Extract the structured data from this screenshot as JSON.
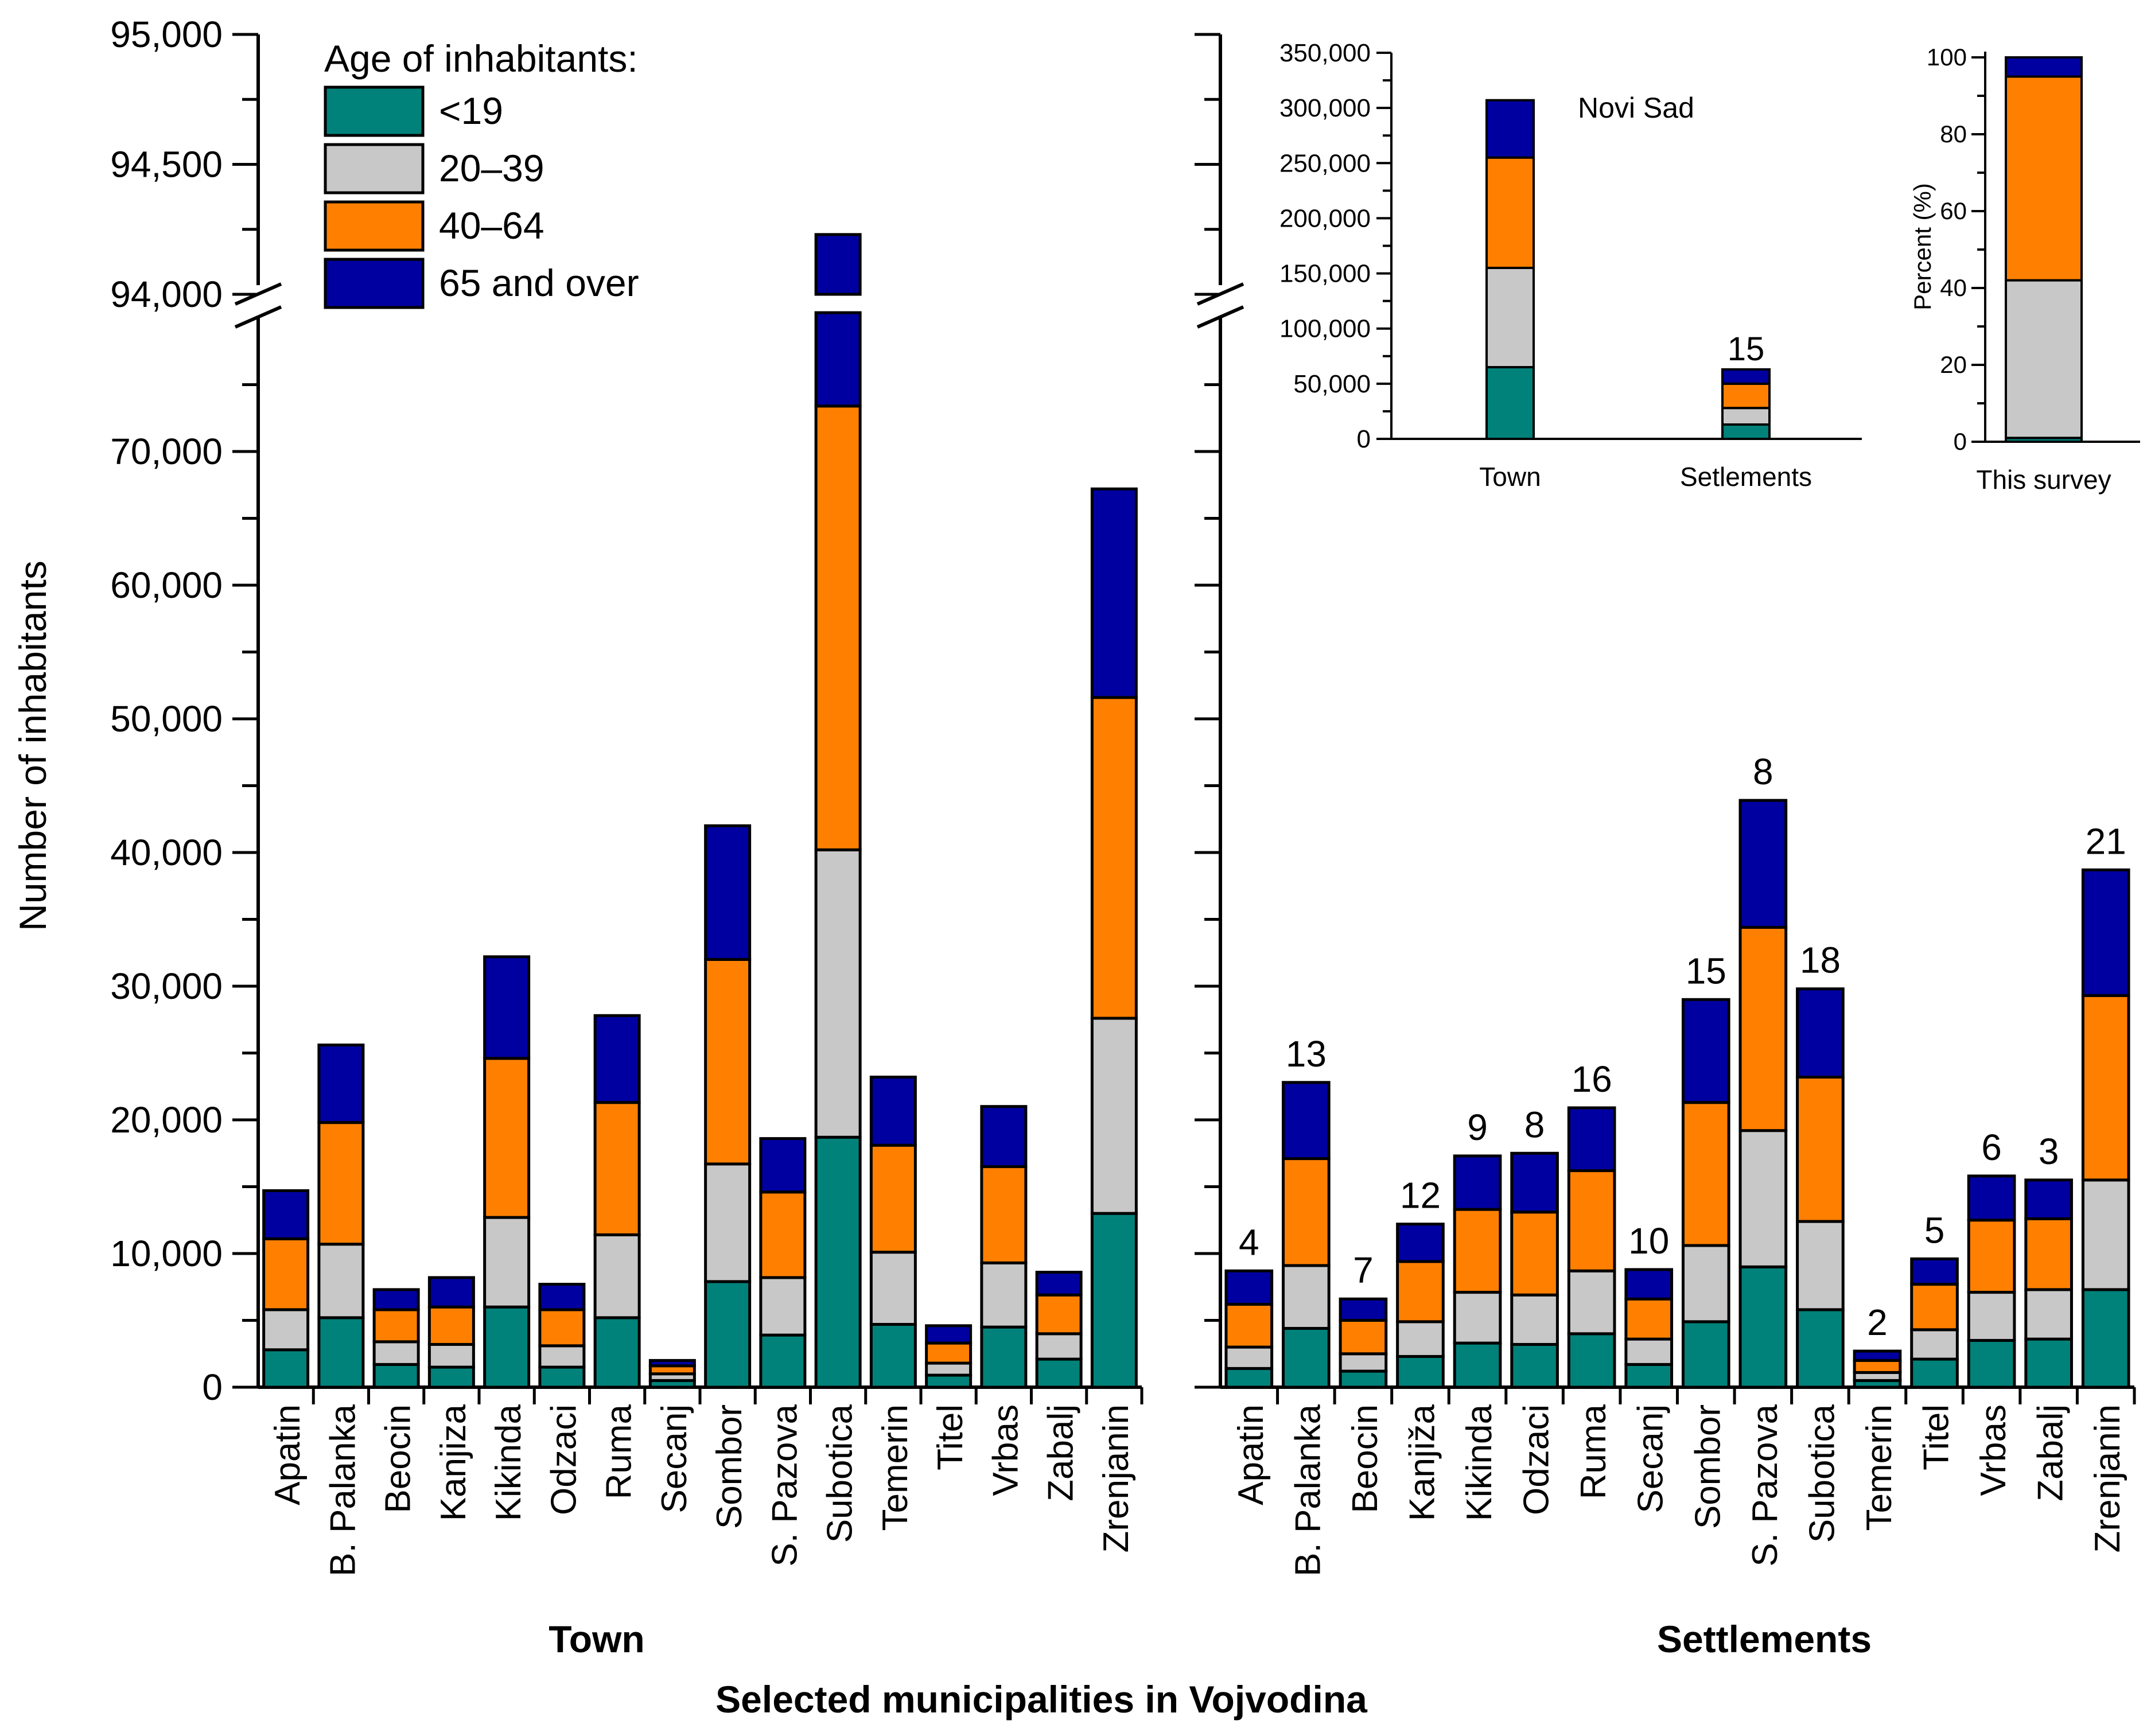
{
  "figure": {
    "xlabel": "Selected municipalities in Vojvodina",
    "ylabel": "Number of inhabitants"
  },
  "legend": {
    "title": "Age of inhabitants:",
    "items": [
      {
        "label": "<19",
        "color": "#00827A"
      },
      {
        "label": "20–39",
        "color": "#C8C8C8"
      },
      {
        "label": "40–64",
        "color": "#FF8000"
      },
      {
        "label": "65 and over",
        "color": "#0000A0"
      }
    ]
  },
  "chart_data": [
    {
      "id": "town",
      "type": "bar",
      "stacked": true,
      "title": "Town",
      "ylabel": "Number of inhabitants",
      "axis_break": [
        80000,
        94000
      ],
      "ylim": [
        0,
        95000
      ],
      "yticks_lower": [
        "0",
        "10,000",
        "20,000",
        "30,000",
        "40,000",
        "50,000",
        "60,000",
        "70,000"
      ],
      "yticks_upper": [
        "94,000",
        "94,500",
        "95,000"
      ],
      "categories": [
        "Apatin",
        "B. Palanka",
        "Beocin",
        "Kanjiza",
        "Kikinda",
        "Odzaci",
        "Ruma",
        "Secanj",
        "Sombor",
        "S. Pazova",
        "Subotica",
        "Temerin",
        "Titel",
        "Vrbas",
        "Zabalj",
        "Zrenjanin"
      ],
      "series": [
        {
          "name": "<19",
          "values": [
            2800,
            5200,
            1700,
            1500,
            6000,
            1500,
            5200,
            500,
            7900,
            3900,
            18700,
            4700,
            900,
            4500,
            2100,
            13000
          ]
        },
        {
          "name": "20–39",
          "values": [
            3000,
            5500,
            1700,
            1700,
            6700,
            1600,
            6200,
            500,
            8800,
            4300,
            21500,
            5400,
            900,
            4800,
            1900,
            14600
          ]
        },
        {
          "name": "40–64",
          "values": [
            5300,
            9100,
            2400,
            2800,
            11900,
            2700,
            9900,
            600,
            15300,
            6400,
            33200,
            8000,
            1500,
            7200,
            2900,
            24000
          ]
        },
        {
          "name": "65 and over",
          "values": [
            3600,
            5800,
            1500,
            2200,
            7600,
            1900,
            6500,
            400,
            10000,
            4000,
            20800,
            5100,
            1300,
            4500,
            1700,
            15600
          ]
        }
      ],
      "totals": [
        14700,
        25600,
        7300,
        8200,
        32200,
        7700,
        27800,
        2000,
        42000,
        18600,
        94230,
        23200,
        4600,
        21000,
        8600,
        67200
      ]
    },
    {
      "id": "settlements",
      "type": "bar",
      "stacked": true,
      "title": "Settlements",
      "ylim": [
        0,
        95000
      ],
      "categories": [
        "Apatin",
        "B. Palanka",
        "Beocin",
        "Kanjiža",
        "Kikinda",
        "Odzaci",
        "Ruma",
        "Secanj",
        "Sombor",
        "S. Pazova",
        "Subotica",
        "Temerin",
        "Titel",
        "Vrbas",
        "Zabalj",
        "Zrenjanin"
      ],
      "annotations": [
        "4",
        "13",
        "7",
        "12",
        "9",
        "8",
        "16",
        "10",
        "15",
        "8",
        "18",
        "2",
        "5",
        "6",
        "3",
        "21"
      ],
      "series": [
        {
          "name": "<19",
          "values": [
            1400,
            4400,
            1200,
            2300,
            3300,
            3200,
            4000,
            1700,
            4900,
            9000,
            5800,
            500,
            2100,
            3500,
            3600,
            7300
          ]
        },
        {
          "name": "20–39",
          "values": [
            1600,
            4700,
            1300,
            2600,
            3800,
            3700,
            4700,
            1900,
            5700,
            10200,
            6600,
            600,
            2200,
            3600,
            3700,
            8200
          ]
        },
        {
          "name": "40–64",
          "values": [
            3200,
            8000,
            2500,
            4500,
            6200,
            6200,
            7500,
            3000,
            10700,
            15200,
            10800,
            900,
            3400,
            5400,
            5300,
            13800
          ]
        },
        {
          "name": "65 and over",
          "values": [
            2500,
            5700,
            1600,
            2800,
            4000,
            4400,
            4700,
            2200,
            7700,
            9500,
            6600,
            700,
            1900,
            3300,
            2900,
            9400
          ]
        }
      ],
      "totals": [
        8700,
        22800,
        6600,
        12200,
        17300,
        17500,
        20900,
        8800,
        29000,
        43900,
        29800,
        2700,
        9600,
        15800,
        15500,
        38700
      ]
    },
    {
      "id": "novi-sad-inset",
      "type": "bar",
      "stacked": true,
      "title": "Novi Sad",
      "ylim": [
        0,
        350000
      ],
      "yticks": [
        "0",
        "50,000",
        "100,000",
        "150,000",
        "200,000",
        "250,000",
        "300,000",
        "350,000"
      ],
      "categories": [
        "Town",
        "Setlements"
      ],
      "annotations": [
        "",
        "15"
      ],
      "series": [
        {
          "name": "<19",
          "values": [
            65000,
            13000
          ]
        },
        {
          "name": "20–39",
          "values": [
            90000,
            15000
          ]
        },
        {
          "name": "40–64",
          "values": [
            100000,
            22000
          ]
        },
        {
          "name": "65 and over",
          "values": [
            52000,
            13000
          ]
        }
      ]
    },
    {
      "id": "survey-inset",
      "type": "bar",
      "stacked": true,
      "ylabel": "Percent (%)",
      "ylim": [
        0,
        100
      ],
      "yticks": [
        "0",
        "20",
        "40",
        "60",
        "80",
        "100"
      ],
      "categories": [
        "This survey"
      ],
      "series": [
        {
          "name": "<19",
          "values": [
            1
          ]
        },
        {
          "name": "20–39",
          "values": [
            41
          ]
        },
        {
          "name": "40–64",
          "values": [
            53
          ]
        },
        {
          "name": "65 and over",
          "values": [
            5
          ]
        }
      ]
    }
  ]
}
